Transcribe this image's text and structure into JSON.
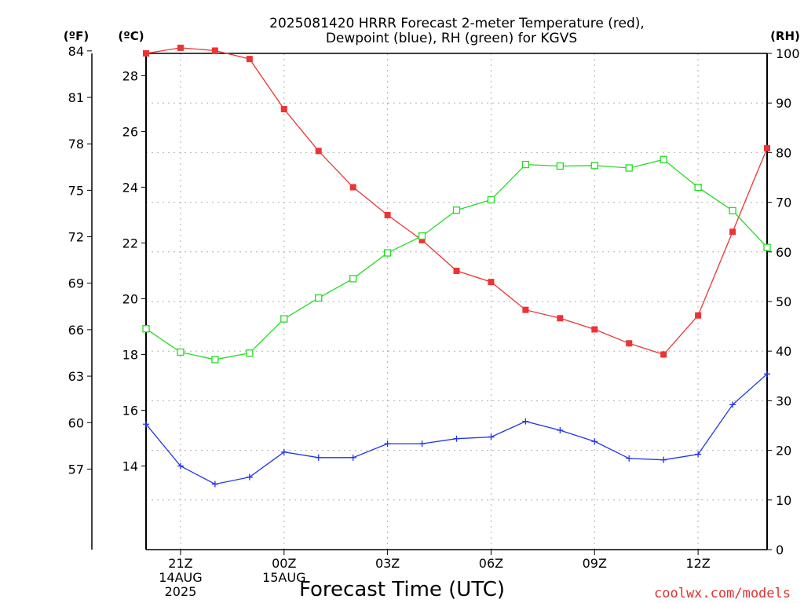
{
  "chart_data": {
    "type": "line",
    "title": "2025081420 HRRR Forecast 2-meter Temperature (red),",
    "subtitle": "Dewpoint (blue), RH (green) for KGVS",
    "xlabel": "Forecast Time (UTC)",
    "credit": "coolwx.com/models",
    "unit_labels": {
      "left_f": "(ºF)",
      "left_c": "(ºC)",
      "right_rh": "(RH)"
    },
    "x_hours": [
      20,
      21,
      22,
      23,
      24,
      25,
      26,
      27,
      28,
      29,
      30,
      31,
      32,
      33,
      34,
      35,
      36,
      37,
      38
    ],
    "x_range": [
      20,
      38
    ],
    "x_ticks": [
      {
        "hour": 21,
        "lines": [
          "21Z",
          "14AUG",
          "2025"
        ]
      },
      {
        "hour": 24,
        "lines": [
          "00Z",
          "15AUG"
        ]
      },
      {
        "hour": 27,
        "lines": [
          "03Z"
        ]
      },
      {
        "hour": 30,
        "lines": [
          "06Z"
        ]
      },
      {
        "hour": 33,
        "lines": [
          "09Z"
        ]
      },
      {
        "hour": 36,
        "lines": [
          "12Z"
        ]
      }
    ],
    "y_celsius": {
      "ylim": [
        11.0,
        28.8
      ],
      "ticks": [
        14,
        16,
        18,
        20,
        22,
        24,
        26,
        28
      ]
    },
    "y_fahrenheit": {
      "ticks": [
        57,
        60,
        63,
        66,
        69,
        72,
        75,
        78,
        81,
        84
      ]
    },
    "y_rh": {
      "ylim": [
        0,
        100
      ],
      "ticks": [
        0,
        10,
        20,
        30,
        40,
        50,
        60,
        70,
        80,
        90,
        100
      ]
    },
    "grid": true,
    "series": [
      {
        "name": "Temperature",
        "axis": "celsius",
        "color": "#ee3333",
        "marker": "filled-square",
        "values": [
          28.8,
          29.0,
          28.9,
          28.6,
          26.8,
          25.3,
          24.0,
          23.0,
          22.1,
          21.0,
          20.6,
          19.6,
          19.3,
          18.9,
          18.4,
          18.0,
          19.4,
          22.4,
          25.4
        ]
      },
      {
        "name": "Dewpoint",
        "axis": "celsius",
        "color": "#2233ee",
        "marker": "plus",
        "values": [
          15.5,
          14.0,
          13.35,
          13.6,
          14.5,
          14.3,
          14.3,
          14.8,
          14.8,
          14.98,
          15.04,
          15.6,
          15.28,
          14.88,
          14.27,
          14.22,
          14.42,
          16.2,
          17.3
        ]
      },
      {
        "name": "RH",
        "axis": "rh",
        "color": "#22dd22",
        "marker": "open-square",
        "values": [
          44.5,
          39.8,
          38.3,
          39.6,
          46.5,
          50.7,
          54.6,
          59.8,
          63.2,
          68.4,
          70.5,
          77.6,
          77.3,
          77.4,
          76.9,
          78.6,
          73.0,
          68.3,
          60.9
        ]
      }
    ]
  }
}
